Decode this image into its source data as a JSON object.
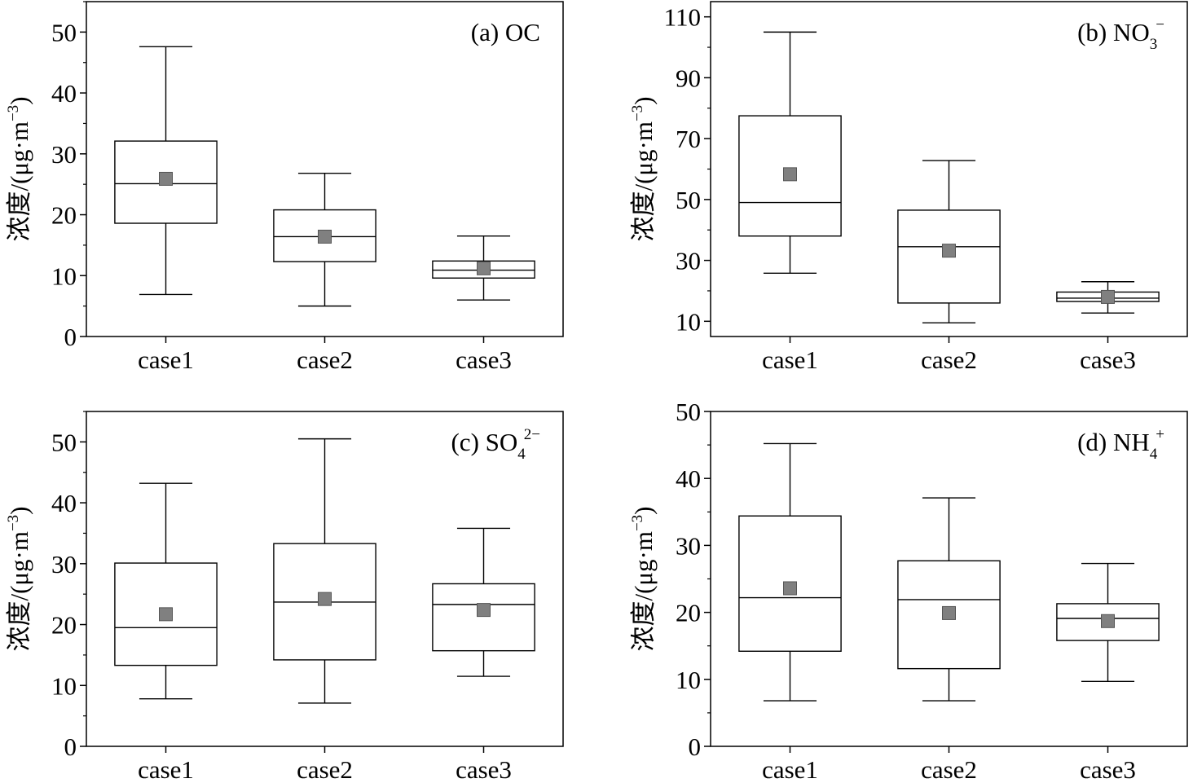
{
  "colors": {
    "axis": "#000000",
    "box_stroke": "#000000",
    "mean_marker": "#808080",
    "mean_marker_edge": "#555555"
  },
  "chart_data": [
    {
      "type": "box",
      "panel_label": "(a) OC",
      "panel_text": "(a) OC",
      "sub": "",
      "sup": "",
      "ylabel": "浓度/(μg·m−3)",
      "ylabel_main": "浓度/(μg·m",
      "ylabel_sup": "−3",
      "ylabel_close": ")",
      "ylim": [
        0,
        55
      ],
      "yticks": [
        0,
        10,
        20,
        30,
        40,
        50
      ],
      "ytick_labels": [
        "0",
        "10",
        "20",
        "30",
        "40",
        "50"
      ],
      "yminor_step": 5,
      "categories": [
        "case1",
        "case2",
        "case3"
      ],
      "boxes": [
        {
          "whisker_low": 6.9,
          "q1": 18.6,
          "median": 25.1,
          "q3": 32.1,
          "whisker_high": 47.6,
          "mean": 25.9
        },
        {
          "whisker_low": 5.0,
          "q1": 12.3,
          "median": 16.4,
          "q3": 20.8,
          "whisker_high": 26.8,
          "mean": 16.4
        },
        {
          "whisker_low": 6.0,
          "q1": 9.6,
          "median": 10.9,
          "q3": 12.4,
          "whisker_high": 16.5,
          "mean": 11.2
        }
      ]
    },
    {
      "type": "box",
      "panel_label": "(b) NO3−",
      "panel_text": "(b) NO",
      "sub": "3",
      "sup": "−",
      "ylabel": "浓度/(μg·m−3)",
      "ylabel_main": "浓度/(μg·m",
      "ylabel_sup": "−3",
      "ylabel_close": ")",
      "ylim": [
        5,
        115
      ],
      "yticks": [
        10,
        30,
        50,
        70,
        90,
        110
      ],
      "ytick_labels": [
        "10",
        "30",
        "50",
        "70",
        "90",
        "110"
      ],
      "yminor_step": 10,
      "categories": [
        "case1",
        "case2",
        "case3"
      ],
      "boxes": [
        {
          "whisker_low": 25.8,
          "q1": 38.0,
          "median": 49.0,
          "q3": 77.5,
          "whisker_high": 105.0,
          "mean": 58.3
        },
        {
          "whisker_low": 9.5,
          "q1": 16.0,
          "median": 34.5,
          "q3": 46.5,
          "whisker_high": 62.8,
          "mean": 33.2
        },
        {
          "whisker_low": 12.7,
          "q1": 16.5,
          "median": 17.6,
          "q3": 19.6,
          "whisker_high": 23.0,
          "mean": 18.0
        }
      ]
    },
    {
      "type": "box",
      "panel_label": "(c) SO42−",
      "panel_text": "(c) SO",
      "sub": "4",
      "sup": "2−",
      "ylabel": "浓度/(μg·m−3)",
      "ylabel_main": "浓度/(μg·m",
      "ylabel_sup": "−3",
      "ylabel_close": ")",
      "ylim": [
        0,
        55
      ],
      "yticks": [
        0,
        10,
        20,
        30,
        40,
        50
      ],
      "ytick_labels": [
        "0",
        "10",
        "20",
        "30",
        "40",
        "50"
      ],
      "yminor_step": 5,
      "categories": [
        "case1",
        "case2",
        "case3"
      ],
      "boxes": [
        {
          "whisker_low": 7.8,
          "q1": 13.3,
          "median": 19.5,
          "q3": 30.1,
          "whisker_high": 43.2,
          "mean": 21.7
        },
        {
          "whisker_low": 7.1,
          "q1": 14.2,
          "median": 23.7,
          "q3": 33.3,
          "whisker_high": 50.5,
          "mean": 24.2
        },
        {
          "whisker_low": 11.5,
          "q1": 15.7,
          "median": 23.3,
          "q3": 26.7,
          "whisker_high": 35.8,
          "mean": 22.4
        }
      ]
    },
    {
      "type": "box",
      "panel_label": "(d) NH4+",
      "panel_text": "(d) NH",
      "sub": "4",
      "sup": "+",
      "ylabel": "浓度/(μg·m−3)",
      "ylabel_main": "浓度/(μg·m",
      "ylabel_sup": "−3",
      "ylabel_close": ")",
      "ylim": [
        0,
        50
      ],
      "yticks": [
        0,
        10,
        20,
        30,
        40,
        50
      ],
      "ytick_labels": [
        "0",
        "10",
        "20",
        "30",
        "40",
        "50"
      ],
      "yminor_step": 5,
      "categories": [
        "case1",
        "case2",
        "case3"
      ],
      "boxes": [
        {
          "whisker_low": 6.8,
          "q1": 14.2,
          "median": 22.2,
          "q3": 34.4,
          "whisker_high": 45.2,
          "mean": 23.6
        },
        {
          "whisker_low": 6.8,
          "q1": 11.6,
          "median": 21.9,
          "q3": 27.7,
          "whisker_high": 37.1,
          "mean": 19.9
        },
        {
          "whisker_low": 9.7,
          "q1": 15.8,
          "median": 19.1,
          "q3": 21.3,
          "whisker_high": 27.3,
          "mean": 18.7
        }
      ]
    }
  ]
}
